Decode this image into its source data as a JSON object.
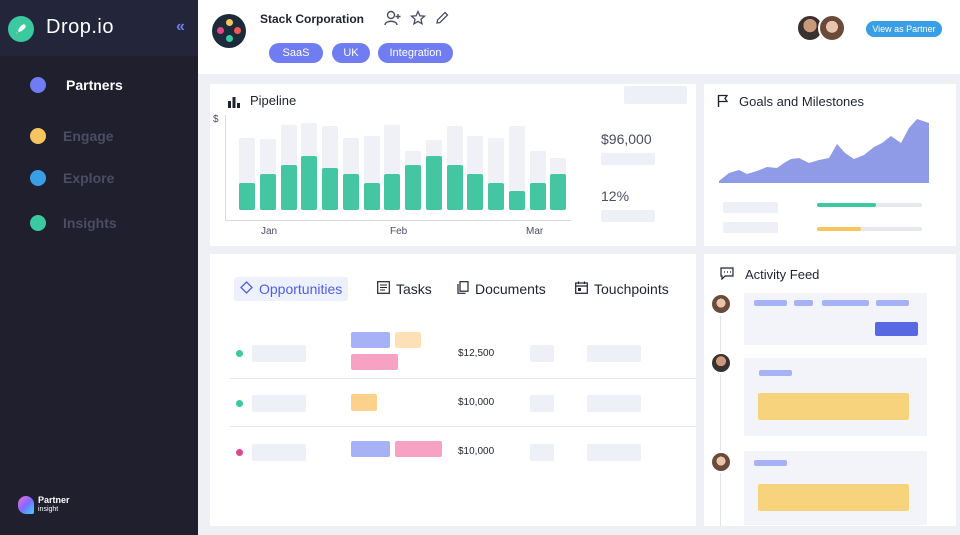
{
  "app": {
    "name": "Drop.io"
  },
  "sidebar": {
    "items": [
      {
        "label": "Partners",
        "color": "#6f7cf2"
      },
      {
        "label": "Engage",
        "color": "#f7c460"
      },
      {
        "label": "Explore",
        "color": "#3a9ee6"
      },
      {
        "label": "Insights",
        "color": "#3bc9a0"
      }
    ],
    "footer_logo": {
      "line1": "Partner",
      "line2": "insight"
    }
  },
  "header": {
    "company": "Stack Corporation",
    "tags": [
      "SaaS",
      "UK",
      "Integration"
    ],
    "view_button": "View as Partner"
  },
  "pipeline": {
    "title": "Pipeline",
    "y_unit": "$",
    "total": "$96,000",
    "percent": "12%"
  },
  "chart_data": {
    "type": "bar",
    "ylabel": "$",
    "x_ticks": [
      "Jan",
      "Feb",
      "Mar"
    ],
    "series": [
      {
        "values": [
          58,
          57,
          68,
          70,
          67,
          58,
          59,
          68,
          47,
          56,
          67,
          59,
          58,
          67,
          47,
          42
        ]
      },
      {
        "values": [
          22,
          29,
          36,
          43,
          34,
          29,
          22,
          29,
          36,
          43,
          36,
          29,
          22,
          15,
          22,
          29
        ]
      }
    ]
  },
  "goals": {
    "title": "Goals and Milestones"
  },
  "tabs": [
    {
      "label": "Opportunities",
      "icon": "target-icon"
    },
    {
      "label": "Tasks",
      "icon": "tasks-icon"
    },
    {
      "label": "Documents",
      "icon": "documents-icon"
    },
    {
      "label": "Touchpoints",
      "icon": "calendar-icon"
    }
  ],
  "opportunities": [
    {
      "amount": "$12,500",
      "dot": "#3bc9a0"
    },
    {
      "amount": "$10,000",
      "dot": "#3bc9a0"
    },
    {
      "amount": "$10,000",
      "dot": "#e0468a"
    }
  ],
  "activity": {
    "title": "Activity Feed"
  },
  "colors": {
    "accent": "#6f7cf2",
    "bar": "#45c6a3",
    "area": "#8f9be6",
    "yellow": "#f7d37e",
    "pink": "#f7a1c3"
  }
}
